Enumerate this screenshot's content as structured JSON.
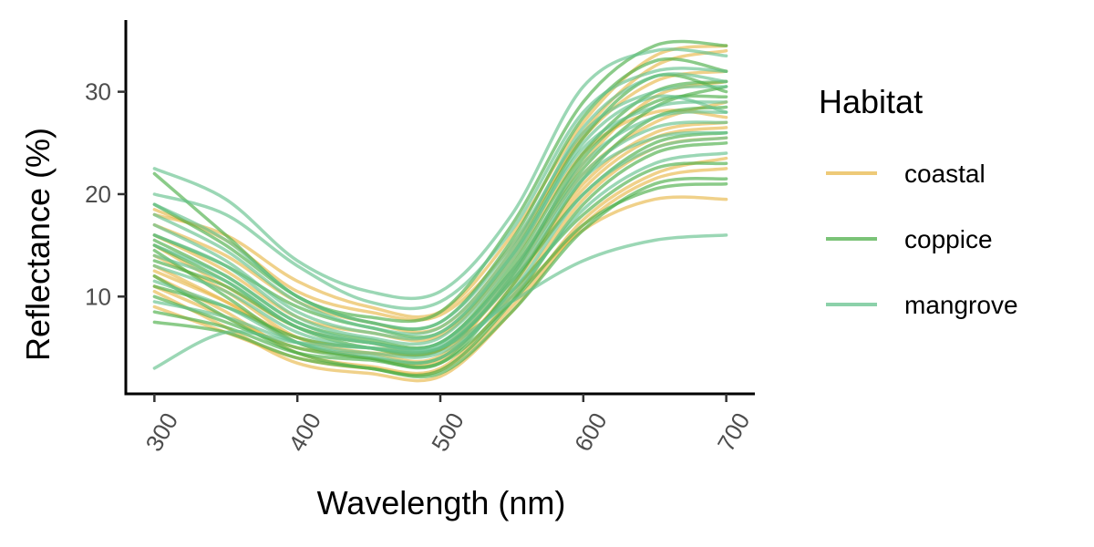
{
  "chart_data": {
    "type": "line",
    "title": "",
    "xlabel": "Wavelength (nm)",
    "ylabel": "Reflectance (%)",
    "xlim": [
      280,
      720
    ],
    "ylim": [
      0.5,
      37
    ],
    "x_ticks": [
      "300",
      "400",
      "500",
      "600",
      "700"
    ],
    "y_ticks": [
      "10",
      "20",
      "30"
    ],
    "x": [
      300,
      350,
      400,
      450,
      500,
      550,
      600,
      650,
      700
    ],
    "grid": false,
    "legend": {
      "title": "Habitat",
      "position": "right"
    },
    "series": [
      {
        "habitat": "coastal",
        "color": "#E8B84B",
        "values": [
          18.5,
          15.5,
          10.5,
          8.5,
          8.2,
          15.0,
          25.5,
          31.0,
          32.0
        ]
      },
      {
        "habitat": "coastal",
        "color": "#E8B84B",
        "values": [
          16.0,
          12.5,
          8.0,
          6.5,
          6.2,
          13.5,
          24.0,
          28.0,
          27.5
        ]
      },
      {
        "habitat": "coastal",
        "color": "#E8B84B",
        "values": [
          14.0,
          10.5,
          6.0,
          4.5,
          4.2,
          12.0,
          22.0,
          27.0,
          29.0
        ]
      },
      {
        "habitat": "coastal",
        "color": "#E8B84B",
        "values": [
          12.0,
          8.5,
          4.5,
          3.2,
          3.0,
          10.0,
          19.5,
          24.5,
          25.5
        ]
      },
      {
        "habitat": "coastal",
        "color": "#E8B84B",
        "values": [
          10.5,
          7.0,
          3.5,
          2.5,
          2.2,
          8.5,
          17.0,
          21.5,
          22.5
        ]
      },
      {
        "habitat": "coastal",
        "color": "#E8B84B",
        "values": [
          9.0,
          6.5,
          4.0,
          3.0,
          2.8,
          9.0,
          17.5,
          22.0,
          23.5
        ]
      },
      {
        "habitat": "coastal",
        "color": "#E8B84B",
        "values": [
          17.0,
          14.0,
          9.5,
          7.5,
          7.0,
          14.5,
          26.0,
          32.5,
          34.0
        ]
      },
      {
        "habitat": "coastal",
        "color": "#E8B84B",
        "values": [
          15.0,
          11.0,
          7.0,
          5.5,
          5.0,
          12.5,
          23.0,
          29.5,
          31.0
        ]
      },
      {
        "habitat": "coastal",
        "color": "#E8B84B",
        "values": [
          13.0,
          9.5,
          5.5,
          4.0,
          3.8,
          11.0,
          20.5,
          25.5,
          26.5
        ]
      },
      {
        "habitat": "coastal",
        "color": "#E8B84B",
        "values": [
          11.0,
          8.0,
          5.0,
          4.5,
          4.8,
          10.0,
          16.5,
          19.5,
          19.5
        ]
      },
      {
        "habitat": "coastal",
        "color": "#E8B84B",
        "values": [
          18.0,
          16.0,
          11.5,
          9.0,
          8.5,
          16.0,
          27.0,
          33.5,
          34.5
        ]
      },
      {
        "habitat": "coastal",
        "color": "#E8B84B",
        "values": [
          12.5,
          9.5,
          6.0,
          5.0,
          4.8,
          11.5,
          21.0,
          26.0,
          27.0
        ]
      },
      {
        "habitat": "coppice",
        "color": "#4DAF4A",
        "values": [
          22.0,
          16.0,
          10.0,
          8.0,
          8.5,
          17.0,
          29.0,
          34.5,
          34.5
        ]
      },
      {
        "habitat": "coppice",
        "color": "#4DAF4A",
        "values": [
          15.5,
          12.0,
          7.5,
          5.8,
          5.5,
          13.0,
          24.0,
          30.0,
          31.0
        ]
      },
      {
        "habitat": "coppice",
        "color": "#4DAF4A",
        "values": [
          14.5,
          10.0,
          5.5,
          4.0,
          3.5,
          11.0,
          21.5,
          27.5,
          28.5
        ]
      },
      {
        "habitat": "coppice",
        "color": "#4DAF4A",
        "values": [
          12.0,
          8.0,
          4.5,
          3.0,
          2.8,
          9.5,
          19.0,
          24.0,
          25.0
        ]
      },
      {
        "habitat": "coppice",
        "color": "#4DAF4A",
        "values": [
          7.5,
          6.5,
          4.0,
          3.0,
          2.5,
          8.5,
          16.5,
          21.0,
          21.5
        ]
      },
      {
        "habitat": "coppice",
        "color": "#4DAF4A",
        "values": [
          16.0,
          13.0,
          9.0,
          7.0,
          6.5,
          14.0,
          25.5,
          31.5,
          30.0
        ]
      },
      {
        "habitat": "coppice",
        "color": "#4DAF4A",
        "values": [
          13.5,
          11.0,
          7.0,
          5.5,
          5.5,
          12.5,
          22.5,
          28.5,
          30.5
        ]
      },
      {
        "habitat": "coppice",
        "color": "#4DAF4A",
        "values": [
          10.0,
          7.5,
          5.0,
          4.0,
          4.0,
          10.5,
          18.0,
          22.5,
          23.0
        ]
      },
      {
        "habitat": "coppice",
        "color": "#4DAF4A",
        "values": [
          8.5,
          7.0,
          4.5,
          3.8,
          3.5,
          9.5,
          17.0,
          20.5,
          21.0
        ]
      },
      {
        "habitat": "coppice",
        "color": "#4DAF4A",
        "values": [
          19.0,
          15.0,
          10.0,
          7.5,
          7.5,
          15.5,
          27.5,
          33.0,
          32.0
        ]
      },
      {
        "habitat": "coppice",
        "color": "#4DAF4A",
        "values": [
          11.0,
          9.0,
          6.0,
          5.0,
          5.0,
          11.5,
          20.0,
          25.0,
          26.0
        ]
      },
      {
        "habitat": "coppice",
        "color": "#4DAF4A",
        "values": [
          15.0,
          11.5,
          7.0,
          5.0,
          4.8,
          12.0,
          23.5,
          29.0,
          29.5
        ]
      },
      {
        "habitat": "mangrove",
        "color": "#66C28E",
        "values": [
          22.5,
          19.5,
          13.5,
          10.5,
          10.5,
          18.0,
          30.5,
          34.0,
          33.5
        ]
      },
      {
        "habitat": "mangrove",
        "color": "#66C28E",
        "values": [
          20.0,
          18.0,
          13.0,
          9.5,
          9.5,
          16.5,
          28.0,
          32.0,
          32.0
        ]
      },
      {
        "habitat": "mangrove",
        "color": "#66C28E",
        "values": [
          19.0,
          15.5,
          10.0,
          7.5,
          7.5,
          15.0,
          26.0,
          30.0,
          30.5
        ]
      },
      {
        "habitat": "mangrove",
        "color": "#66C28E",
        "values": [
          17.0,
          13.5,
          8.5,
          6.5,
          6.5,
          14.0,
          24.5,
          28.5,
          29.0
        ]
      },
      {
        "habitat": "mangrove",
        "color": "#66C28E",
        "values": [
          15.0,
          12.0,
          7.5,
          5.5,
          5.5,
          12.5,
          23.0,
          27.5,
          28.0
        ]
      },
      {
        "habitat": "mangrove",
        "color": "#66C28E",
        "values": [
          13.0,
          10.5,
          6.5,
          5.0,
          5.0,
          11.5,
          21.5,
          25.5,
          26.0
        ]
      },
      {
        "habitat": "mangrove",
        "color": "#66C28E",
        "values": [
          11.5,
          9.0,
          5.5,
          4.2,
          4.0,
          10.5,
          20.0,
          24.5,
          25.5
        ]
      },
      {
        "habitat": "mangrove",
        "color": "#66C28E",
        "values": [
          9.5,
          8.0,
          5.5,
          4.5,
          4.5,
          10.0,
          18.5,
          23.0,
          24.0
        ]
      },
      {
        "habitat": "mangrove",
        "color": "#66C28E",
        "values": [
          3.0,
          6.5,
          5.5,
          5.0,
          5.0,
          9.5,
          13.5,
          15.5,
          16.0
        ]
      },
      {
        "habitat": "mangrove",
        "color": "#66C28E",
        "values": [
          16.0,
          13.0,
          8.0,
          6.0,
          6.0,
          13.5,
          25.0,
          29.5,
          28.0
        ]
      },
      {
        "habitat": "mangrove",
        "color": "#66C28E",
        "values": [
          18.0,
          14.5,
          9.5,
          7.0,
          7.0,
          14.5,
          26.5,
          31.5,
          31.0
        ]
      },
      {
        "habitat": "mangrove",
        "color": "#66C28E",
        "values": [
          14.0,
          11.5,
          7.0,
          5.5,
          5.2,
          12.0,
          22.0,
          26.5,
          27.0
        ]
      }
    ],
    "legend_items": [
      {
        "label": "coastal",
        "color": "#E8B84B"
      },
      {
        "label": "coppice",
        "color": "#4DAF4A"
      },
      {
        "label": "mangrove",
        "color": "#66C28E"
      }
    ]
  }
}
